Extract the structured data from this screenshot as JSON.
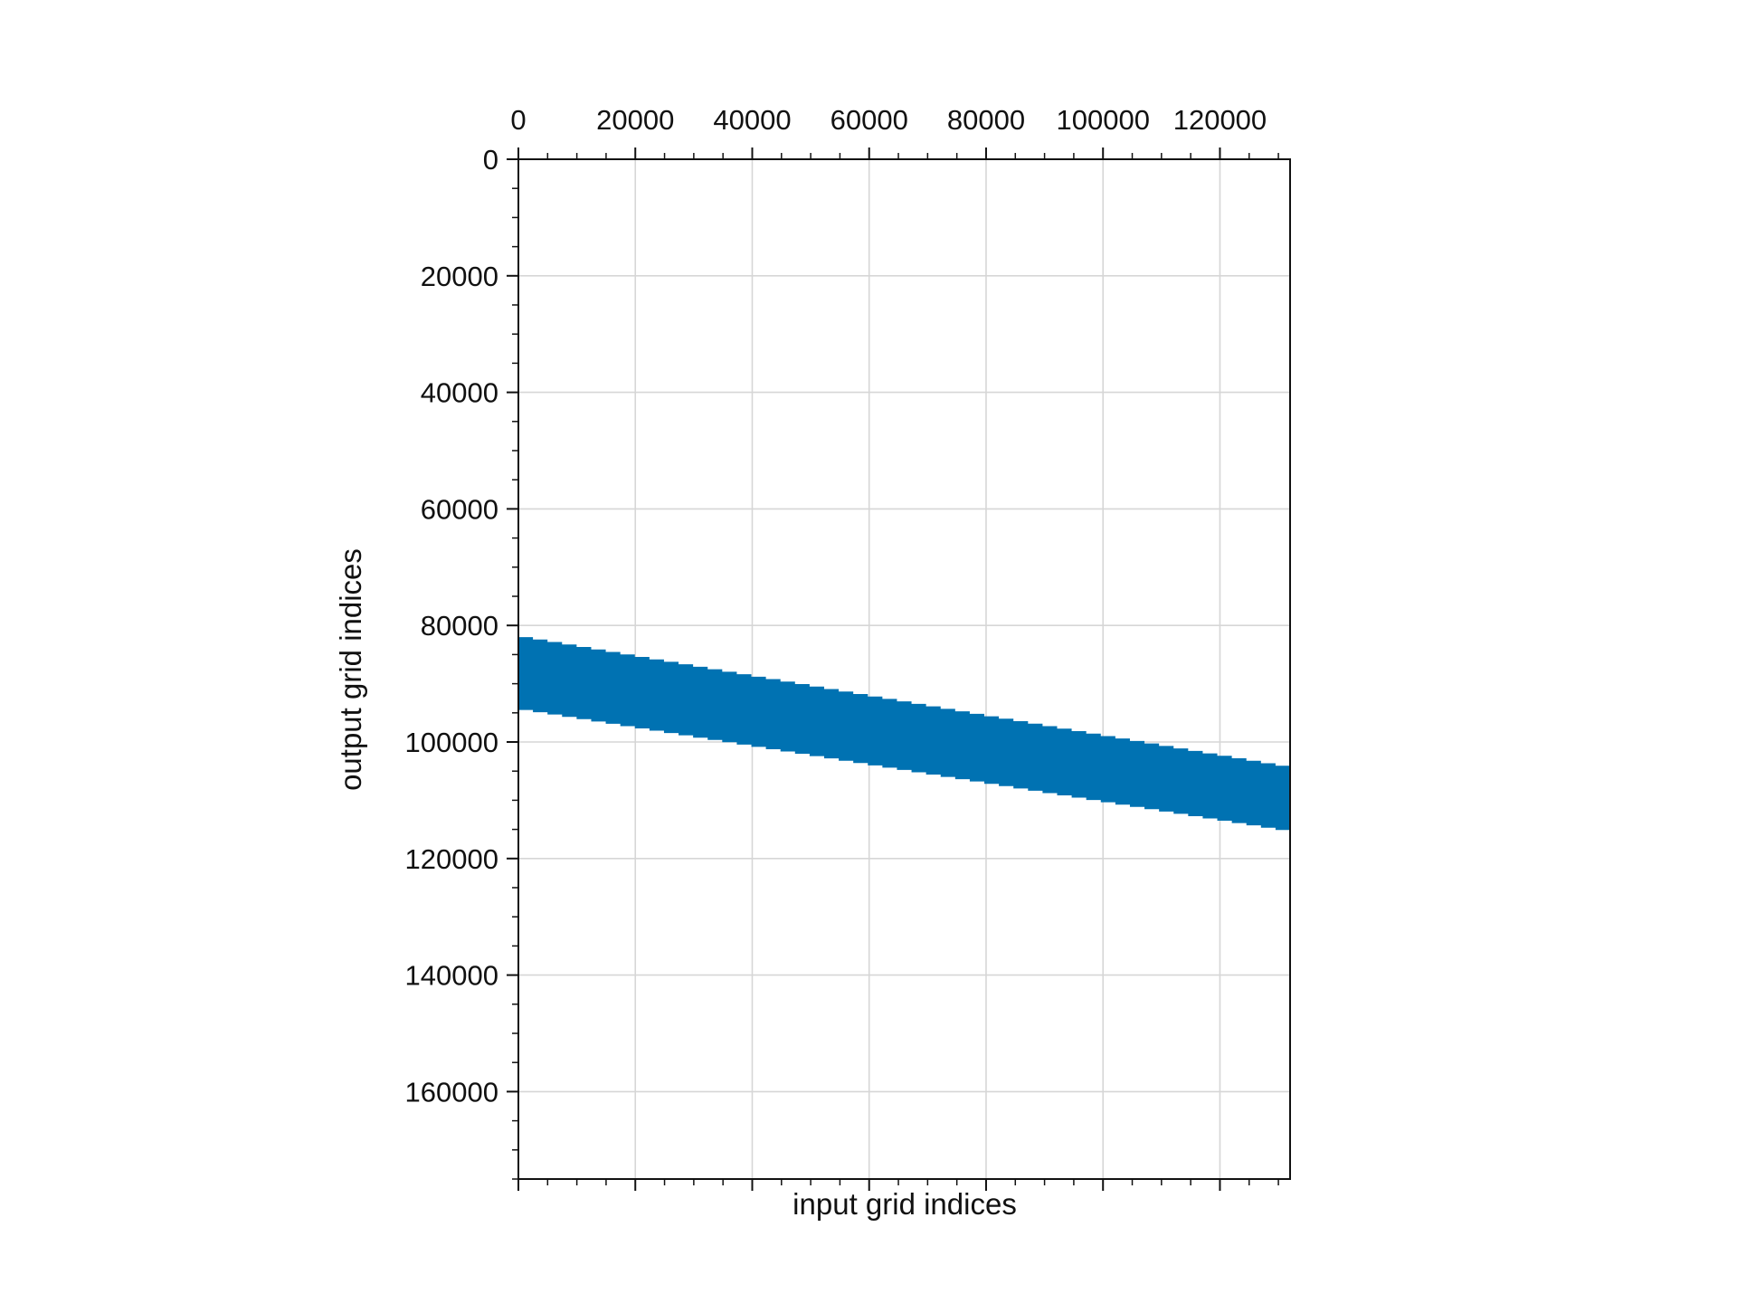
{
  "chart_data": {
    "type": "scatter",
    "title": "",
    "xlabel": "input grid indices",
    "ylabel": "output grid indices",
    "xlim": [
      0,
      132000
    ],
    "ylim": [
      175000,
      0
    ],
    "y_inverted": true,
    "x_ticks": [
      0,
      20000,
      40000,
      60000,
      80000,
      100000,
      120000
    ],
    "y_ticks": [
      0,
      20000,
      40000,
      60000,
      80000,
      100000,
      120000,
      140000,
      160000
    ],
    "x_tick_position": "top",
    "grid": true,
    "legend": "none",
    "series": [
      {
        "color": "#0072b2",
        "band": {
          "x": [
            0,
            132000
          ],
          "y_top": [
            82000,
            104500
          ],
          "y_bottom": [
            94500,
            115500
          ],
          "steps": 53
        }
      }
    ]
  }
}
